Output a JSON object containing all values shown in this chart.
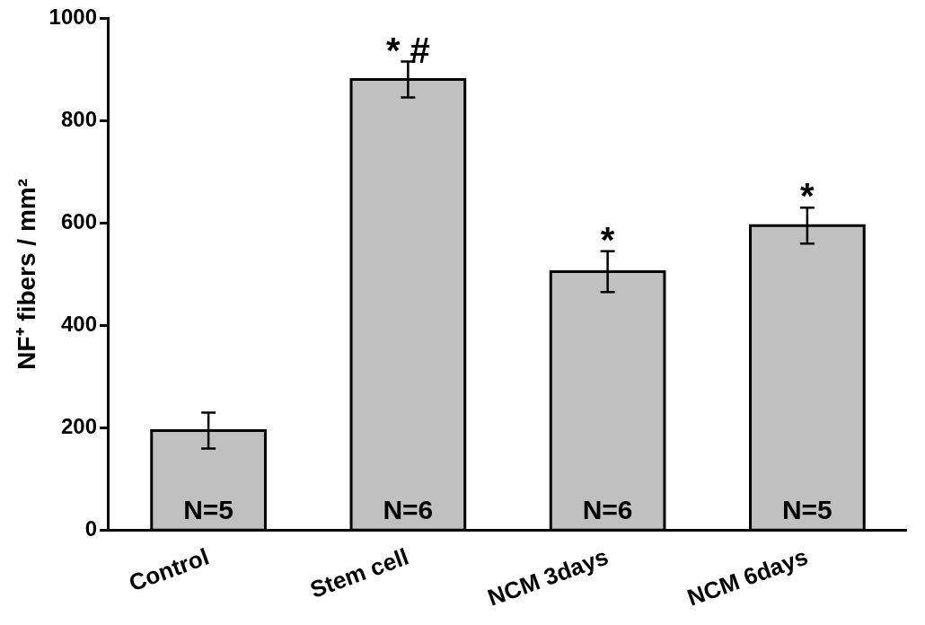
{
  "chart_data": {
    "type": "bar",
    "ylabel": "NF⁺ fibers / mm²",
    "categories": [
      "Control",
      "Stem cell",
      "NCM 3days",
      "NCM 6days"
    ],
    "values": [
      195,
      880,
      505,
      595
    ],
    "color": "#c0c0c0",
    "errors": [
      35,
      35,
      40,
      35
    ],
    "ylim": [
      0,
      1000
    ],
    "yticks": [
      0,
      200,
      400,
      600,
      800,
      1000
    ],
    "grid": false,
    "legend": false,
    "annotations": [
      {
        "text": "N=5",
        "x": "Control",
        "y": 0
      },
      {
        "text": "N=6",
        "x": "Stem cell",
        "y": 0
      },
      {
        "text": "N=6",
        "x": "NCM 3days",
        "y": 0
      },
      {
        "text": "N=5",
        "x": "NCM 6days",
        "y": 0
      },
      {
        "text": "* #",
        "x": "Stem cell",
        "y": 915
      },
      {
        "text": "*",
        "x": "NCM 3days",
        "y": 545
      },
      {
        "text": "*",
        "x": "NCM 6days",
        "y": 630
      }
    ]
  }
}
